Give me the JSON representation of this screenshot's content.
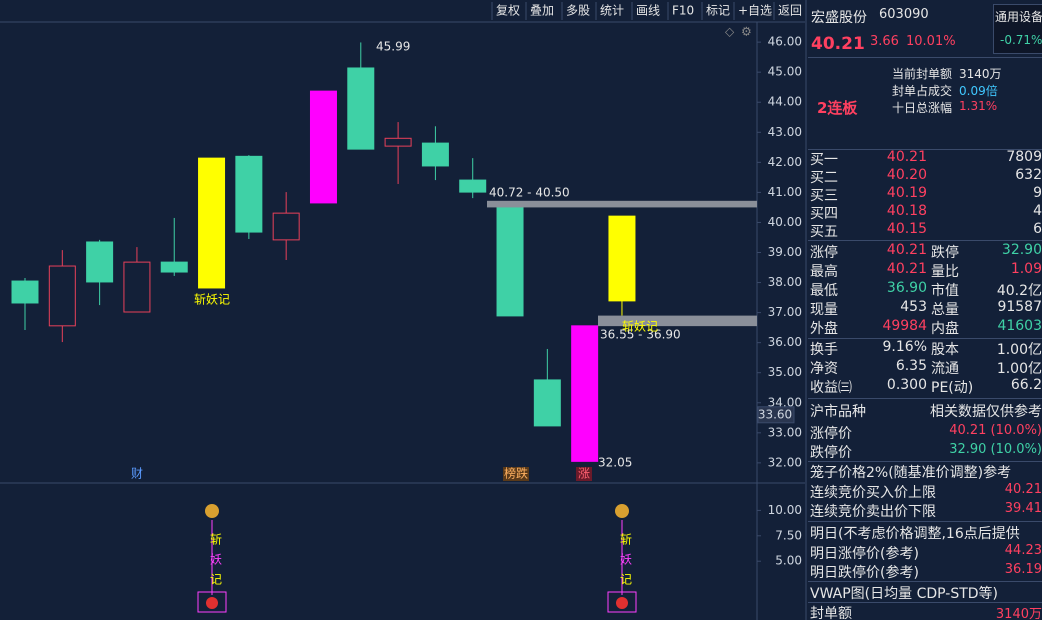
{
  "toolbar": [
    "复权",
    "叠加",
    "多股",
    "统计",
    "画线",
    "F10",
    "标记",
    "+自选",
    "返回"
  ],
  "chart": {
    "ylim": [
      31.33,
      46.67
    ],
    "yticks": [
      {
        "value": 46,
        "label": "46.00"
      },
      {
        "value": 45,
        "label": "45.00"
      },
      {
        "value": 44,
        "label": "44.00"
      },
      {
        "value": 43,
        "label": "43.00"
      },
      {
        "value": 42,
        "label": "42.00"
      },
      {
        "value": 41,
        "label": "41.00"
      },
      {
        "value": 40,
        "label": "40.00"
      },
      {
        "value": 39,
        "label": "39.00"
      },
      {
        "value": 38,
        "label": "38.00"
      },
      {
        "value": 37,
        "label": "37.00"
      },
      {
        "value": 36,
        "label": "36.00"
      },
      {
        "value": 35,
        "label": "35.00"
      },
      {
        "value": 34,
        "label": "34.00"
      },
      {
        "value": 33,
        "label": "33.00"
      },
      {
        "value": 32,
        "label": "32.00"
      }
    ],
    "cursor": {
      "value": 33.6,
      "label": "33.60"
    },
    "candles": [
      {
        "open": 38.05,
        "high": 38.15,
        "low": 36.42,
        "close": 37.32,
        "color": "#3fd1a6",
        "hollow": false
      },
      {
        "open": 36.56,
        "high": 39.08,
        "low": 36.02,
        "close": 38.55,
        "color": "#e8405a",
        "hollow": true
      },
      {
        "open": 39.35,
        "high": 39.42,
        "low": 37.25,
        "close": 38.02,
        "color": "#3fd1a6",
        "hollow": false
      },
      {
        "open": 37.02,
        "high": 39.18,
        "low": 37.02,
        "close": 38.68,
        "color": "#e8405a",
        "hollow": true
      },
      {
        "open": 38.68,
        "high": 40.15,
        "low": 38.22,
        "close": 38.35,
        "color": "#3fd1a6",
        "hollow": false
      },
      {
        "open": 37.82,
        "high": 42.14,
        "low": 37.82,
        "close": 42.14,
        "color": "#ffff00",
        "hollow": false
      },
      {
        "open": 42.2,
        "high": 42.24,
        "low": 39.45,
        "close": 39.68,
        "color": "#3fd1a6",
        "hollow": false
      },
      {
        "open": 39.42,
        "high": 41.01,
        "low": 38.75,
        "close": 40.31,
        "color": "#e8405a",
        "hollow": true
      },
      {
        "open": 40.65,
        "high": 44.37,
        "low": 40.65,
        "close": 44.37,
        "color": "#ff00ff",
        "hollow": false
      },
      {
        "open": 45.14,
        "high": 45.99,
        "low": 42.44,
        "close": 42.44,
        "color": "#3fd1a6",
        "hollow": false
      },
      {
        "open": 42.54,
        "high": 43.34,
        "low": 41.28,
        "close": 42.8,
        "color": "#e8405a",
        "hollow": true
      },
      {
        "open": 42.64,
        "high": 43.2,
        "low": 41.41,
        "close": 41.88,
        "color": "#3fd1a6",
        "hollow": false
      },
      {
        "open": 41.41,
        "high": 42.14,
        "low": 40.81,
        "close": 41.01,
        "color": "#3fd1a6",
        "hollow": false
      },
      {
        "open": 40.51,
        "high": 40.68,
        "low": 36.89,
        "close": 36.89,
        "color": "#3fd1a6",
        "hollow": false
      },
      {
        "open": 34.76,
        "high": 35.79,
        "low": 33.23,
        "close": 33.23,
        "color": "#3fd1a6",
        "hollow": false
      },
      {
        "open": 32.05,
        "high": 36.56,
        "low": 32.05,
        "close": 36.56,
        "color": "#ff00ff",
        "hollow": false
      },
      {
        "open": 37.39,
        "high": 40.21,
        "low": 36.9,
        "close": 40.21,
        "color": "#ffff00",
        "hollow": false
      }
    ],
    "zones": [
      {
        "from": 40.72,
        "to": 40.5,
        "label": "40.72 - 40.50"
      },
      {
        "from": 36.9,
        "to": 36.55,
        "label": "36.55 - 36.90"
      }
    ],
    "high_label": "45.99",
    "low_label": "32.05",
    "signal": "斩妖记",
    "signal2": "斩妖记",
    "cai": "财",
    "bangdie": "榜跌",
    "zhang": "涨"
  },
  "sub": {
    "ylim": [
      0,
      12.5
    ],
    "yticks": [
      {
        "value": 10,
        "label": "10.00"
      },
      {
        "value": 7.5,
        "label": "7.50"
      },
      {
        "value": 5,
        "label": "5.00"
      }
    ],
    "chars": [
      "斩",
      "妖",
      "记"
    ]
  },
  "panel": {
    "name": "宏盛股份",
    "code": "603090",
    "price": "40.21",
    "change": "3.66",
    "pct": "10.01%",
    "sector": "通用设备",
    "sector_pct": "-0.71%",
    "info": [
      [
        "当前封单额",
        "3140万"
      ],
      [
        "封单占成交",
        "0.09倍"
      ],
      [
        "十日总涨幅",
        "1.31%"
      ]
    ],
    "streak": "2连板",
    "book": [
      [
        "买一",
        "40.21",
        "7809"
      ],
      [
        "买二",
        "40.20",
        "632"
      ],
      [
        "买三",
        "40.19",
        "9"
      ],
      [
        "买四",
        "40.18",
        "4"
      ],
      [
        "买五",
        "40.15",
        "6"
      ]
    ],
    "stats": [
      [
        "涨停",
        "40.21",
        "跌停",
        "32.90"
      ],
      [
        "最高",
        "40.21",
        "量比",
        "1.09"
      ],
      [
        "最低",
        "36.90",
        "市值",
        "40.2亿"
      ],
      [
        "现量",
        "453",
        "总量",
        "91587"
      ],
      [
        "外盘",
        "49984",
        "内盘",
        "41603"
      ]
    ],
    "stats2": [
      [
        "换手",
        "9.16%",
        "股本",
        "1.00亿"
      ],
      [
        "净资",
        "6.35",
        "流通",
        "1.00亿"
      ],
      [
        "收益㈢",
        "0.300",
        "PE(动)",
        "66.2"
      ]
    ],
    "market": "沪市品种",
    "note": "相关数据仅供参考",
    "limits": [
      [
        "涨停价",
        "40.21 (10.0%)"
      ],
      [
        "跌停价",
        "32.90 (10.0%)"
      ]
    ],
    "cage": "笼子价格2%(随基准价调整)参考",
    "cage_rows": [
      [
        "连续竞价买入价上限",
        "40.21"
      ],
      [
        "连续竞价卖出价下限",
        "39.41"
      ]
    ],
    "tomorrow": "明日(不考虑价格调整,16点后提供",
    "tomorrow_rows": [
      [
        "明日涨停价(参考)",
        "44.23"
      ],
      [
        "明日跌停价(参考)",
        "36.19"
      ]
    ],
    "vwap": "VWAP图(日均量 CDP-STD等)",
    "seal": [
      "封单额",
      "3140万"
    ]
  }
}
